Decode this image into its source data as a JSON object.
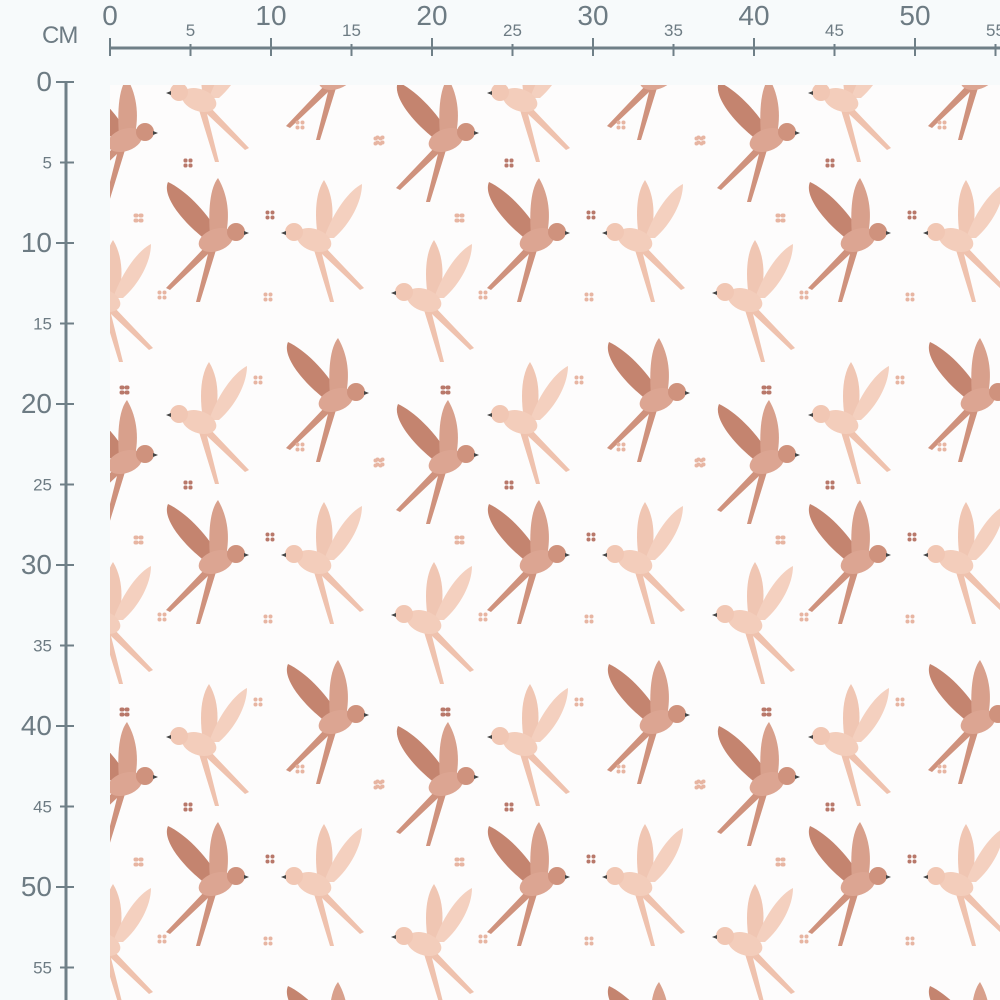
{
  "ruler": {
    "unit": "CM",
    "top_labels": [
      "0",
      "5",
      "10",
      "15",
      "20",
      "25",
      "30",
      "35",
      "40",
      "45",
      "50",
      "55"
    ],
    "left_labels": [
      "0",
      "5",
      "10",
      "15",
      "20",
      "25",
      "30",
      "35",
      "40",
      "45",
      "50",
      "55"
    ],
    "color": "#6f7f87"
  },
  "fabric": {
    "pattern": "swallows-and-flowers",
    "background": "#fdfcfc",
    "colors": {
      "bird_dark": "#d39a86",
      "bird_dark_wing": "#c4846f",
      "bird_light": "#f2c9b6",
      "bird_light_wing": "#eebda8",
      "flower_light": "#e7b5a2",
      "flower_dark": "#b8786a"
    }
  }
}
